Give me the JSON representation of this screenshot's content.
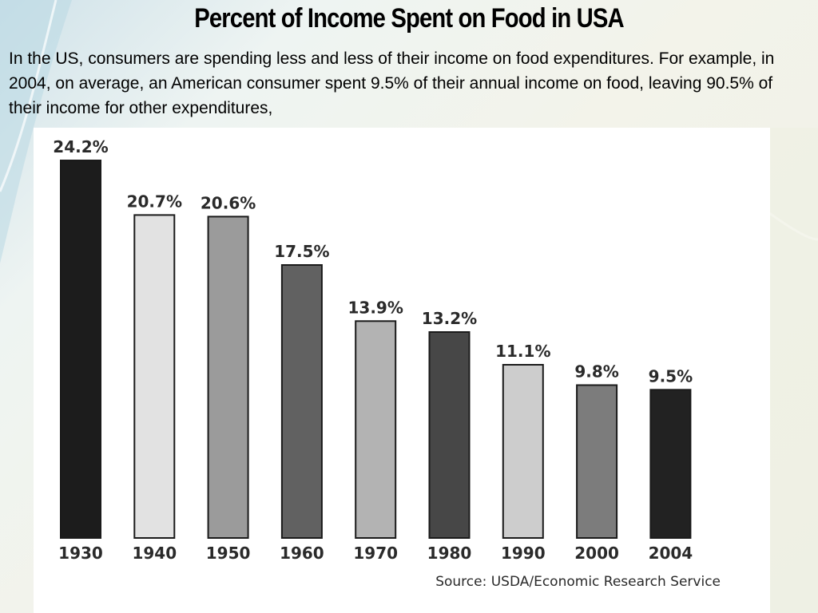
{
  "slide": {
    "title": "Percent of Income Spent on Food in USA",
    "body": "In the US, consumers are spending less and less of their income on food expenditures. For example, in 2004, on average, an American consumer spent 9.5% of their annual income on food, leaving 90.5% of their income for other expenditures,"
  },
  "chart_data": {
    "type": "bar",
    "categories": [
      "1930",
      "1940",
      "1950",
      "1960",
      "1970",
      "1980",
      "1990",
      "2000",
      "2004"
    ],
    "values": [
      24.2,
      20.7,
      20.6,
      17.5,
      13.9,
      13.2,
      11.1,
      9.8,
      9.5
    ],
    "value_labels": [
      "24.2%",
      "20.7%",
      "20.6%",
      "17.5%",
      "13.9%",
      "13.2%",
      "11.1%",
      "9.8%",
      "9.5%"
    ],
    "bar_colors": [
      "#1c1c1c",
      "#e2e2e2",
      "#9b9b9b",
      "#616161",
      "#b3b3b3",
      "#474747",
      "#cdcdcd",
      "#7c7c7c",
      "#222222"
    ],
    "source": "Source: USDA/Economic Research Service",
    "ylim": [
      0,
      24.2
    ],
    "grid": false,
    "legend": "none"
  }
}
